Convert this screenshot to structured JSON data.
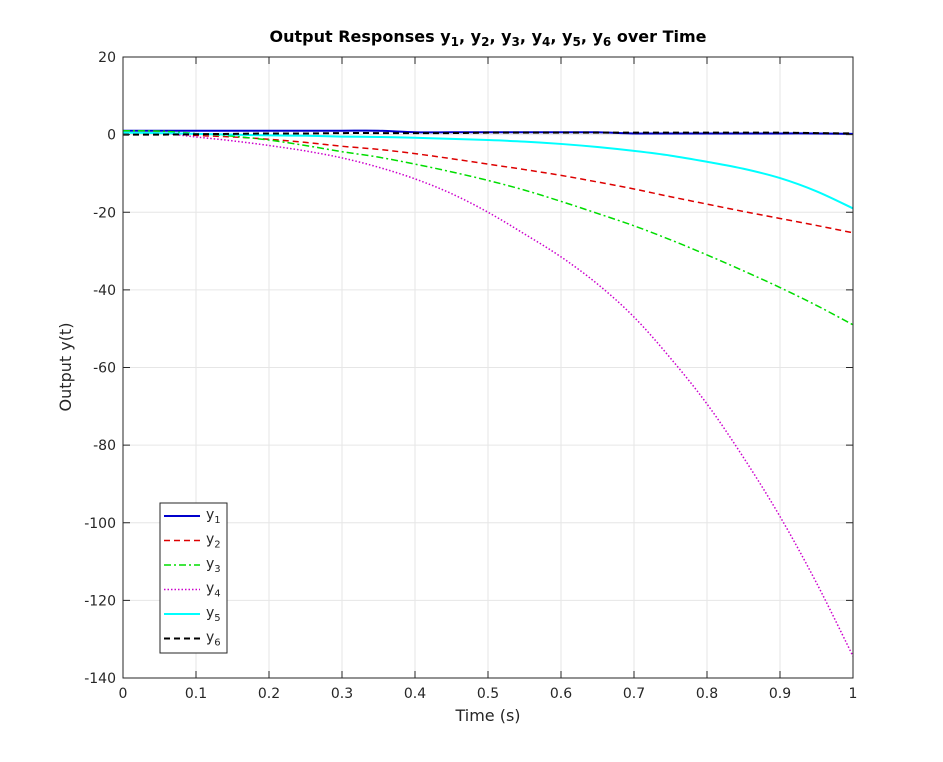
{
  "chart_data": {
    "type": "line",
    "title": {
      "prefix": "Output Responses ",
      "sep": ", ",
      "suffix": " over Time",
      "vars": [
        {
          "base": "y",
          "sub": "1"
        },
        {
          "base": "y",
          "sub": "2"
        },
        {
          "base": "y",
          "sub": "3"
        },
        {
          "base": "y",
          "sub": "4"
        },
        {
          "base": "y",
          "sub": "5"
        },
        {
          "base": "y",
          "sub": "6"
        }
      ]
    },
    "xlabel": "Time (s)",
    "ylabel": "Output y(t)",
    "xlim": [
      0,
      1
    ],
    "ylim": [
      -140,
      20
    ],
    "xticks": [
      0,
      0.1,
      0.2,
      0.3,
      0.4,
      0.5,
      0.6,
      0.7,
      0.8,
      0.9,
      1
    ],
    "xtick_labels": [
      "0",
      "0.1",
      "0.2",
      "0.3",
      "0.4",
      "0.5",
      "0.6",
      "0.7",
      "0.8",
      "0.9",
      "1"
    ],
    "yticks": [
      -140,
      -120,
      -100,
      -80,
      -60,
      -40,
      -20,
      0,
      20
    ],
    "ytick_labels": [
      "-140",
      "-120",
      "-100",
      "-80",
      "-60",
      "-40",
      "-20",
      "0",
      "20"
    ],
    "grid": true,
    "legend_position": "bottom-left",
    "x": [
      0,
      0.05,
      0.1,
      0.15,
      0.2,
      0.25,
      0.3,
      0.35,
      0.4,
      0.45,
      0.5,
      0.55,
      0.6,
      0.65,
      0.7,
      0.75,
      0.8,
      0.85,
      0.9,
      0.95,
      1
    ],
    "series": [
      {
        "name": "y",
        "sub": "1",
        "color": "#0000cc",
        "dash": "solid",
        "width": 2,
        "values": [
          1.0,
          1.0,
          1.0,
          1.0,
          1.0,
          1.0,
          1.0,
          1.0,
          0.6,
          0.6,
          0.6,
          0.6,
          0.6,
          0.6,
          0.3,
          0.3,
          0.3,
          0.3,
          0.3,
          0.3,
          0.2
        ]
      },
      {
        "name": "y",
        "sub": "2",
        "color": "#dd0000",
        "dash": "dashed",
        "width": 1.5,
        "values": [
          0.5,
          0.4,
          -0.2,
          -0.6,
          -1.2,
          -2.0,
          -3.0,
          -3.8,
          -4.9,
          -6.2,
          -7.6,
          -9.0,
          -10.5,
          -12.2,
          -14.0,
          -16.0,
          -17.9,
          -19.8,
          -21.6,
          -23.4,
          -25.3
        ]
      },
      {
        "name": "y",
        "sub": "3",
        "color": "#00dd00",
        "dash": "dashdot",
        "width": 1.5,
        "values": [
          1.0,
          0.9,
          0.3,
          -0.4,
          -1.4,
          -2.8,
          -4.4,
          -5.8,
          -7.6,
          -9.6,
          -11.8,
          -14.3,
          -17.2,
          -20.3,
          -23.5,
          -27.1,
          -31.0,
          -35.1,
          -39.4,
          -44.0,
          -49.0
        ]
      },
      {
        "name": "y",
        "sub": "4",
        "color": "#cc00cc",
        "dash": "dotted",
        "width": 1.5,
        "values": [
          0.5,
          0.4,
          -0.6,
          -1.6,
          -2.8,
          -4.2,
          -6.0,
          -8.4,
          -11.4,
          -15.2,
          -20.0,
          -25.6,
          -31.5,
          -38.5,
          -47.0,
          -57.6,
          -69.4,
          -83.2,
          -98.4,
          -115.5,
          -134.4
        ]
      },
      {
        "name": "y",
        "sub": "5",
        "color": "#00ffff",
        "dash": "solid",
        "width": 2,
        "values": [
          0.5,
          0.4,
          0.2,
          0.0,
          -0.2,
          -0.3,
          -0.5,
          -0.6,
          -0.8,
          -1.1,
          -1.4,
          -1.8,
          -2.4,
          -3.2,
          -4.2,
          -5.4,
          -7.0,
          -8.8,
          -11.2,
          -14.6,
          -19.0
        ]
      },
      {
        "name": "y",
        "sub": "6",
        "color": "#000000",
        "dash": "dashed",
        "width": 2,
        "values": [
          0.0,
          0.0,
          0.1,
          0.2,
          0.3,
          0.3,
          0.4,
          0.4,
          0.4,
          0.4,
          0.5,
          0.5,
          0.5,
          0.5,
          0.5,
          0.5,
          0.5,
          0.5,
          0.5,
          0.4,
          0.3
        ]
      }
    ]
  }
}
